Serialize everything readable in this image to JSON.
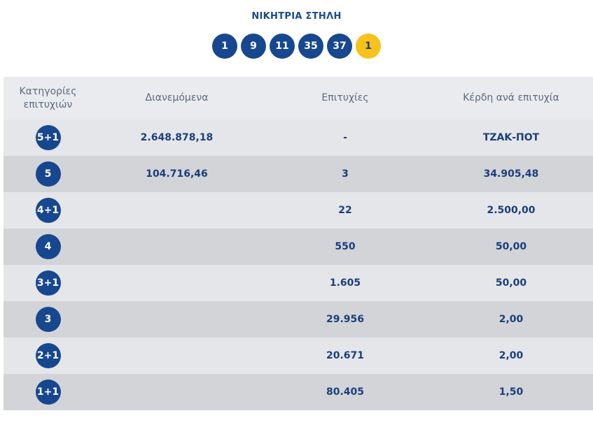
{
  "title": "ΝΙΚΗΤΡΙΑ ΣΤΗΛΗ",
  "numbers": [
    "1",
    "9",
    "11",
    "35",
    "37"
  ],
  "bonus": "1",
  "headers": {
    "category_line1": "Κατηγορίες",
    "category_line2": "επιτυχιών",
    "distributed": "Διανεμόμενα",
    "winners": "Επιτυχίες",
    "prize": "Κέρδη ανά επιτυχία"
  },
  "rows": [
    {
      "category": "5+1",
      "distributed": "2.648.878,18",
      "winners": "-",
      "prize": "ΤΖΑΚ-ΠΟΤ"
    },
    {
      "category": "5",
      "distributed": "104.716,46",
      "winners": "3",
      "prize": "34.905,48"
    },
    {
      "category": "4+1",
      "distributed": "",
      "winners": "22",
      "prize": "2.500,00"
    },
    {
      "category": "4",
      "distributed": "",
      "winners": "550",
      "prize": "50,00"
    },
    {
      "category": "3+1",
      "distributed": "",
      "winners": "1.605",
      "prize": "50,00"
    },
    {
      "category": "3",
      "distributed": "",
      "winners": "29.956",
      "prize": "2,00"
    },
    {
      "category": "2+1",
      "distributed": "",
      "winners": "20.671",
      "prize": "2,00"
    },
    {
      "category": "1+1",
      "distributed": "",
      "winners": "80.405",
      "prize": "1,50"
    }
  ],
  "colors": {
    "ball": "#17478f",
    "bonus_ball": "#f8c21c",
    "text": "#1b3f7b",
    "row_light": "#e5e6e9",
    "row_dark": "#d2d4d8"
  }
}
